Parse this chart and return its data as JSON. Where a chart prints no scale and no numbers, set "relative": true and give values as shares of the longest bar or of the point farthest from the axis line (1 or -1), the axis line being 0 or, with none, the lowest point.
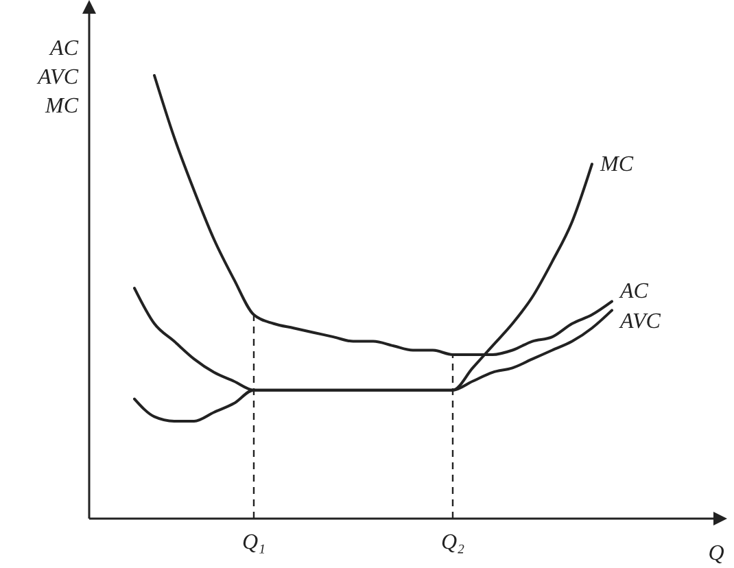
{
  "chart_data": {
    "type": "line",
    "relative": true,
    "ylabel": "AC\nAVC\nMC",
    "xlabel": "Q",
    "categories": [
      null,
      null,
      null,
      null,
      null,
      null,
      null,
      null,
      "Q₁",
      null,
      null,
      null,
      null,
      null,
      null,
      null,
      null,
      null,
      "Q₂",
      null,
      null,
      null,
      null,
      null,
      null,
      null,
      null,
      null,
      null,
      null,
      null,
      null
    ],
    "series": [
      {
        "name": "MC",
        "color": "#222222",
        "values": [
          null,
          null,
          0.27,
          0.23,
          0.22,
          0.22,
          0.24,
          0.26,
          0.29,
          0.29,
          0.29,
          0.29,
          0.29,
          0.29,
          0.29,
          0.29,
          0.29,
          0.29,
          0.29,
          0.34,
          0.39,
          0.44,
          0.5,
          0.58,
          0.67,
          0.8,
          null,
          null,
          null,
          null,
          null,
          null
        ]
      },
      {
        "name": "AC",
        "color": "#222222",
        "values": [
          null,
          null,
          null,
          1.0,
          0.86,
          0.74,
          0.63,
          0.54,
          0.46,
          0.44,
          0.43,
          0.42,
          0.41,
          0.4,
          0.4,
          0.39,
          0.38,
          0.38,
          0.37,
          0.37,
          0.37,
          0.38,
          0.4,
          0.41,
          0.44,
          0.46,
          0.49,
          null,
          null,
          null,
          null,
          null
        ]
      },
      {
        "name": "AVC",
        "color": "#222222",
        "values": [
          null,
          null,
          0.52,
          0.44,
          0.4,
          0.36,
          0.33,
          0.31,
          0.29,
          0.29,
          0.29,
          0.29,
          0.29,
          0.29,
          0.29,
          0.29,
          0.29,
          0.29,
          0.29,
          0.31,
          0.33,
          0.34,
          0.36,
          0.38,
          0.4,
          0.43,
          0.47,
          null,
          null,
          null,
          null,
          null
        ]
      }
    ],
    "ref_lines": [
      {
        "axis": "x",
        "value": "Q₁",
        "line_style": "dashed"
      },
      {
        "axis": "x",
        "value": "Q₂",
        "line_style": "dashed"
      }
    ],
    "grid": false,
    "legend": false,
    "marker": "none",
    "line_style": "solid"
  }
}
